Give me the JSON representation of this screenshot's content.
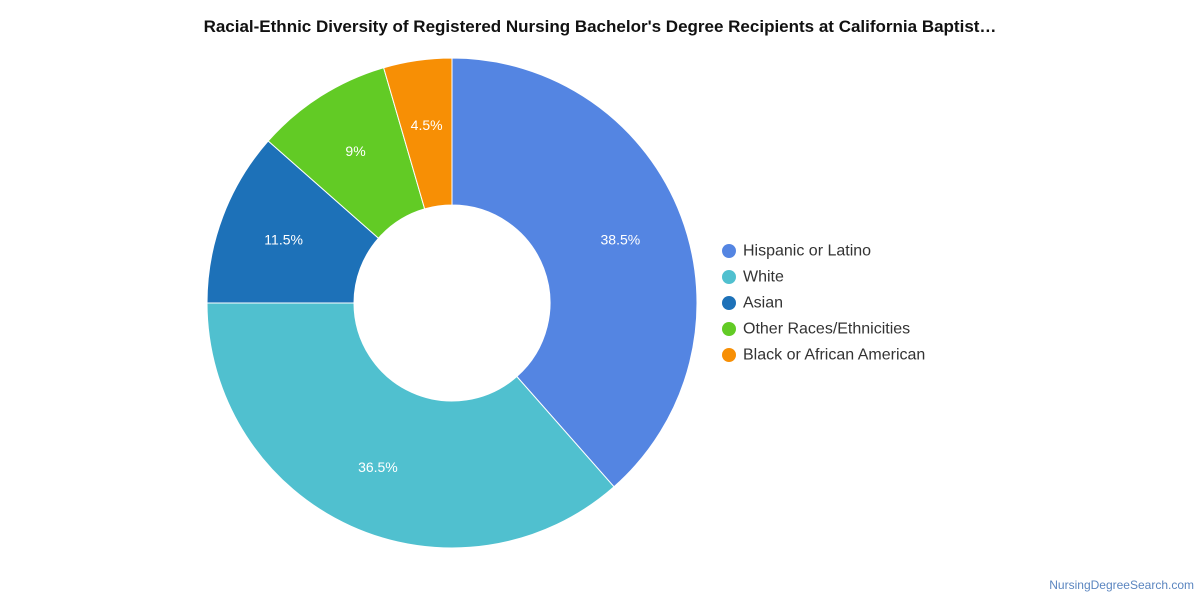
{
  "chart_data": {
    "type": "pie",
    "title": "Racial-Ethnic Diversity of Registered Nursing Bachelor's Degree Recipients at California Baptist…",
    "donut": true,
    "legend_position": "right",
    "slices": [
      {
        "label": "Hispanic or Latino",
        "value": 38.5,
        "display": "38.5%",
        "color": "#5485e2"
      },
      {
        "label": "White",
        "value": 36.5,
        "display": "36.5%",
        "color": "#50c0cf"
      },
      {
        "label": "Asian",
        "value": 11.5,
        "display": "11.5%",
        "color": "#1d71b8"
      },
      {
        "label": "Other Races/Ethnicities",
        "value": 9,
        "display": "9%",
        "color": "#62cb25"
      },
      {
        "label": "Black or African American",
        "value": 4.5,
        "display": "4.5%",
        "color": "#f78f05"
      }
    ]
  },
  "footer": {
    "credit": "NursingDegreeSearch.com"
  }
}
